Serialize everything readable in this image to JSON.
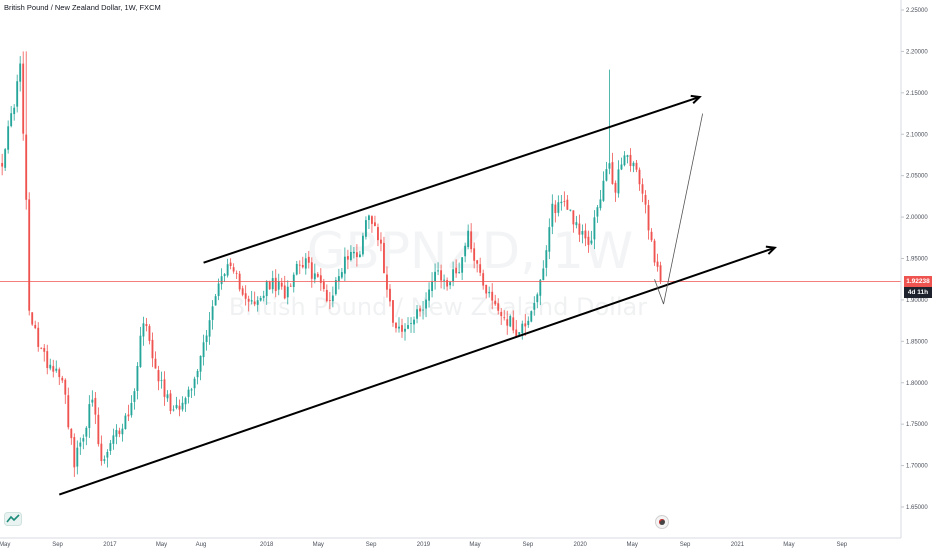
{
  "header": {
    "symbol_line": "British Pound / New Zealand Dollar, 1W, FXCM"
  },
  "watermark": {
    "ticker": "GBPNZD, 1W",
    "description": "British Pound / New Zealand Dollar"
  },
  "price_tag": {
    "price": "1.92238",
    "countdown": "4d 11h",
    "color": "#ef5350",
    "countdown_color": "#1e222d"
  },
  "colors": {
    "up": "#26a69a",
    "down": "#ef5350",
    "trendline": "#000000",
    "projection": "#555555",
    "last_price_line": "#ef5350"
  },
  "icons": {
    "logo": "tradingview-logo-icon",
    "nav": "chart-navigation-icon"
  },
  "chart_data": {
    "type": "candlestick",
    "title": "British Pound / New Zealand Dollar, 1W, FXCM",
    "ylim": [
      1.625,
      2.26
    ],
    "y_ticks": [
      "2.25000",
      "2.20000",
      "2.15000",
      "2.10000",
      "2.05000",
      "2.00000",
      "1.95000",
      "1.90000",
      "1.85000",
      "1.80000",
      "1.75000",
      "1.70000",
      "1.65000"
    ],
    "y_tick_values": [
      2.25,
      2.2,
      2.15,
      2.1,
      2.05,
      2.0,
      1.95,
      1.9,
      1.85,
      1.8,
      1.75,
      1.7,
      1.65
    ],
    "x_ticks": [
      "May",
      "Sep",
      "2017",
      "May",
      "Aug",
      "2018",
      "May",
      "Sep",
      "2019",
      "May",
      "Sep",
      "2020",
      "May",
      "Sep",
      "2021",
      "May",
      "Sep"
    ],
    "x_tick_dates": [
      "2016-05-01",
      "2016-09-01",
      "2017-01-01",
      "2017-05-01",
      "2017-08-01",
      "2018-01-01",
      "2018-05-01",
      "2018-09-01",
      "2019-01-01",
      "2019-05-01",
      "2019-09-01",
      "2020-01-01",
      "2020-05-01",
      "2020-09-01",
      "2021-01-01",
      "2021-05-01",
      "2021-09-01"
    ],
    "last_price": 1.92238,
    "anchors": [
      [
        "2016-04-25",
        2.07
      ],
      [
        "2016-05-16",
        2.12
      ],
      [
        "2016-06-06",
        2.18
      ],
      [
        "2016-06-20",
        2.02
      ],
      [
        "2016-06-27",
        1.88
      ],
      [
        "2016-08-01",
        1.83
      ],
      [
        "2016-09-12",
        1.81
      ],
      [
        "2016-10-10",
        1.7
      ],
      [
        "2016-10-31",
        1.74
      ],
      [
        "2016-11-21",
        1.78
      ],
      [
        "2016-12-12",
        1.7
      ],
      [
        "2017-01-09",
        1.73
      ],
      [
        "2017-02-20",
        1.77
      ],
      [
        "2017-03-20",
        1.88
      ],
      [
        "2017-04-24",
        1.81
      ],
      [
        "2017-05-22",
        1.77
      ],
      [
        "2017-06-26",
        1.78
      ],
      [
        "2017-07-17",
        1.8
      ],
      [
        "2017-08-21",
        1.88
      ],
      [
        "2017-09-25",
        1.94
      ],
      [
        "2017-10-30",
        1.92
      ],
      [
        "2017-12-04",
        1.89
      ],
      [
        "2018-01-08",
        1.92
      ],
      [
        "2018-02-12",
        1.91
      ],
      [
        "2018-03-19",
        1.95
      ],
      [
        "2018-04-23",
        1.93
      ],
      [
        "2018-05-28",
        1.9
      ],
      [
        "2018-07-02",
        1.95
      ],
      [
        "2018-08-06",
        1.96
      ],
      [
        "2018-08-27",
        2.01
      ],
      [
        "2018-09-17",
        1.98
      ],
      [
        "2018-10-22",
        1.88
      ],
      [
        "2018-11-12",
        1.86
      ],
      [
        "2018-12-17",
        1.88
      ],
      [
        "2019-01-28",
        1.93
      ],
      [
        "2019-02-25",
        1.92
      ],
      [
        "2019-03-25",
        1.94
      ],
      [
        "2019-04-15",
        1.98
      ],
      [
        "2019-05-13",
        1.93
      ],
      [
        "2019-06-10",
        1.9
      ],
      [
        "2019-07-08",
        1.88
      ],
      [
        "2019-08-12",
        1.86
      ],
      [
        "2019-09-02",
        1.88
      ],
      [
        "2019-10-07",
        1.93
      ],
      [
        "2019-10-28",
        2.01
      ],
      [
        "2019-11-25",
        2.02
      ],
      [
        "2019-12-16",
        2.0
      ],
      [
        "2020-01-20",
        1.96
      ],
      [
        "2020-02-17",
        2.03
      ],
      [
        "2020-03-09",
        2.06
      ],
      [
        "2020-03-23",
        2.03
      ],
      [
        "2020-04-06",
        2.07
      ],
      [
        "2020-04-27",
        2.07
      ],
      [
        "2020-05-25",
        2.03
      ],
      [
        "2020-06-15",
        1.97
      ],
      [
        "2020-07-06",
        1.922
      ]
    ],
    "annotations": [
      {
        "name": "upper-channel-line",
        "points": [
          [
            "2017-08-07",
            1.945
          ],
          [
            "2020-10-05",
            2.145
          ]
        ],
        "arrow": true
      },
      {
        "name": "lower-channel-line",
        "points": [
          [
            "2016-09-05",
            1.665
          ],
          [
            "2021-03-29",
            1.963
          ]
        ],
        "arrow": true
      },
      {
        "name": "projection-down-leg",
        "points": [
          [
            "2020-06-22",
            1.925
          ],
          [
            "2020-07-13",
            1.895
          ]
        ],
        "arrow": false
      },
      {
        "name": "projection-up-leg",
        "points": [
          [
            "2020-07-13",
            1.895
          ],
          [
            "2020-10-12",
            2.125
          ]
        ],
        "arrow": false
      }
    ]
  }
}
